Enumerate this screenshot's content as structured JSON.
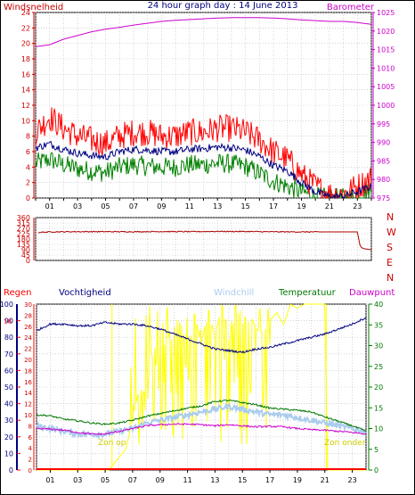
{
  "header": {
    "title": "24 hour graph day : 14 June 2013",
    "left_label": "Windsnelheid",
    "right_label": "Barometer"
  },
  "bottom_header": {
    "regen": "Regen",
    "vochtigheid": "Vochtigheid",
    "windchill": "Windchill",
    "temperatuur": "Temperatuur",
    "dauwpunt": "Dauwpunt"
  },
  "annotations": {
    "zon_op": "Zon op",
    "zon_onder": "Zon onder"
  },
  "compass": [
    "N",
    "W",
    "S",
    "E",
    "N"
  ],
  "colors": {
    "frame": "#000000",
    "grid": "#bbbbbb",
    "wind_axis": "#cc0000",
    "baro_axis": "#cc00cc",
    "gust": "#ff0000",
    "avg_wind": "#000080",
    "wind_min": "#008000",
    "barometer": "#cc00cc",
    "direction": "#aa0000",
    "humidity": "#000080",
    "windchill": "#aaccee",
    "temperature": "#007700",
    "dewpoint": "#cc00cc",
    "solar": "#ffff00",
    "rain": "#ff0000",
    "title": "#000080"
  },
  "chart_data": [
    {
      "type": "line",
      "title": "24 hour graph day : 14 June 2013",
      "ylabel_left": "Windsnelheid",
      "ylabel_right": "Barometer",
      "x_ticks": [
        "01",
        "03",
        "05",
        "07",
        "09",
        "11",
        "13",
        "15",
        "17",
        "19",
        "21",
        "23"
      ],
      "x_range": [
        0,
        24
      ],
      "ylim_left": [
        0,
        24
      ],
      "y_ticks_left": [
        0,
        2,
        4,
        6,
        8,
        10,
        12,
        14,
        16,
        18,
        20,
        22,
        24
      ],
      "ylim_right": [
        975,
        1025
      ],
      "y_ticks_right": [
        975,
        980,
        985,
        990,
        995,
        1000,
        1005,
        1010,
        1015,
        1020,
        1025
      ],
      "grid": true,
      "series": [
        {
          "name": "Barometer",
          "axis": "right",
          "x": [
            0,
            1,
            2,
            3,
            4,
            5,
            6,
            7,
            8,
            9,
            10,
            11,
            12,
            13,
            14,
            15,
            16,
            17,
            18,
            19,
            20,
            21,
            22,
            23,
            24
          ],
          "values": [
            1015.8,
            1016.3,
            1017.8,
            1018.8,
            1019.8,
            1020.5,
            1021.0,
            1021.6,
            1022.1,
            1022.6,
            1022.9,
            1023.1,
            1023.3,
            1023.5,
            1023.6,
            1023.6,
            1023.6,
            1023.5,
            1023.3,
            1023.0,
            1022.8,
            1022.6,
            1022.6,
            1022.3,
            1021.8
          ]
        },
        {
          "name": "Windstoot",
          "axis": "left",
          "x": [
            0,
            1,
            2,
            3,
            4,
            5,
            6,
            7,
            8,
            9,
            10,
            11,
            12,
            13,
            14,
            15,
            16,
            17,
            18,
            19,
            20,
            21,
            22,
            23,
            24
          ],
          "values": [
            8.5,
            10.5,
            9.0,
            8.0,
            7.5,
            7.0,
            8.0,
            8.5,
            8.5,
            8.0,
            8.0,
            8.5,
            8.5,
            9.0,
            9.0,
            8.5,
            7.5,
            6.0,
            5.0,
            3.0,
            1.5,
            0.5,
            0.5,
            1.5,
            2.5
          ]
        },
        {
          "name": "Gemiddelde wind",
          "axis": "left",
          "x": [
            0,
            1,
            2,
            3,
            4,
            5,
            6,
            7,
            8,
            9,
            10,
            11,
            12,
            13,
            14,
            15,
            16,
            17,
            18,
            19,
            20,
            21,
            22,
            23,
            24
          ],
          "values": [
            6.5,
            7.0,
            6.3,
            5.8,
            5.5,
            5.3,
            6.0,
            6.3,
            6.2,
            6.0,
            6.0,
            6.3,
            6.4,
            6.6,
            6.5,
            6.2,
            5.4,
            4.2,
            3.5,
            2.0,
            0.8,
            0.2,
            0.2,
            0.8,
            1.5
          ]
        },
        {
          "name": "Minimum wind",
          "axis": "left",
          "x": [
            0,
            1,
            2,
            3,
            4,
            5,
            6,
            7,
            8,
            9,
            10,
            11,
            12,
            13,
            14,
            15,
            16,
            17,
            18,
            19,
            20,
            21,
            22,
            23,
            24
          ],
          "values": [
            4.5,
            5.0,
            4.3,
            3.8,
            3.5,
            3.3,
            4.0,
            4.3,
            4.1,
            4.0,
            4.0,
            4.3,
            4.3,
            4.5,
            4.4,
            4.1,
            3.2,
            2.2,
            1.5,
            0.8,
            0.2,
            0.0,
            0.0,
            0.3,
            0.8
          ]
        }
      ]
    },
    {
      "type": "line",
      "ylabel": "",
      "x_range": [
        0,
        24
      ],
      "ylim": [
        0,
        360
      ],
      "y_ticks": [
        0,
        45,
        90,
        135,
        180,
        225,
        270,
        315,
        360
      ],
      "grid": true,
      "series": [
        {
          "name": "Windrichting",
          "x": [
            0.2,
            1,
            3,
            5,
            7,
            9,
            11,
            13,
            15,
            17,
            19,
            20.5,
            21,
            22,
            23,
            23.2,
            23.4,
            24
          ],
          "values": [
            235,
            240,
            242,
            242,
            241,
            243,
            242,
            244,
            243,
            241,
            240,
            240,
            240,
            240,
            240,
            120,
            100,
            90
          ]
        }
      ]
    },
    {
      "type": "line",
      "x_range": [
        0,
        24
      ],
      "axes": {
        "regen": {
          "ylim": [
            0,
            20
          ],
          "ticks": [
            0,
            2,
            4,
            6,
            8,
            10,
            12,
            14,
            16,
            18
          ]
        },
        "vochtigheid": {
          "ylim": [
            0,
            100
          ],
          "ticks": [
            0,
            10,
            20,
            30,
            40,
            50,
            60,
            70,
            80,
            90,
            100
          ]
        },
        "temperatuur": {
          "ylim": [
            0,
            30
          ],
          "ticks": [
            0,
            2,
            4,
            6,
            8,
            10,
            12,
            14,
            16,
            18,
            20,
            22,
            24,
            26,
            28,
            30
          ]
        },
        "zonnestraling": {
          "ylim": [
            0,
            40
          ],
          "ticks": [
            0,
            5,
            10,
            15,
            20,
            25,
            30,
            35,
            40
          ]
        }
      },
      "grid": true,
      "series": [
        {
          "name": "Vochtigheid",
          "axis": "vochtigheid",
          "x": [
            0,
            1,
            2,
            3,
            4,
            5,
            6,
            7,
            8,
            9,
            10,
            11,
            12,
            13,
            14,
            15,
            16,
            17,
            18,
            19,
            20,
            21,
            22,
            23,
            24
          ],
          "values": [
            84,
            88,
            88,
            87,
            87,
            89,
            88,
            88,
            87,
            85,
            82,
            79,
            76,
            73,
            72,
            71,
            73,
            74,
            76,
            78,
            80,
            82,
            85,
            88,
            92
          ]
        },
        {
          "name": "Windchill",
          "axis": "temperatuur",
          "x": [
            0,
            1,
            2,
            3,
            4,
            5,
            6,
            7,
            8,
            9,
            10,
            11,
            12,
            13,
            14,
            15,
            16,
            17,
            18,
            19,
            20,
            21,
            22,
            23,
            24
          ],
          "values": [
            8.0,
            7.5,
            7.0,
            6.5,
            6.5,
            6.5,
            7.0,
            7.5,
            8.5,
            9.0,
            9.5,
            10.0,
            10.5,
            11.0,
            11.5,
            11.0,
            10.5,
            10.0,
            10.0,
            9.5,
            9.0,
            8.5,
            8.0,
            7.5,
            7.0
          ]
        },
        {
          "name": "Temperatuur",
          "axis": "temperatuur",
          "x": [
            0,
            1,
            2,
            3,
            4,
            5,
            6,
            7,
            8,
            9,
            10,
            11,
            12,
            13,
            14,
            15,
            16,
            17,
            18,
            19,
            20,
            21,
            22,
            23,
            24
          ],
          "values": [
            10.0,
            9.8,
            9.2,
            8.9,
            8.5,
            8.3,
            8.5,
            9.0,
            9.7,
            10.2,
            10.7,
            11.2,
            11.6,
            12.4,
            12.6,
            12.2,
            11.8,
            11.2,
            11.0,
            10.8,
            10.5,
            9.6,
            8.8,
            8.0,
            7.0
          ]
        },
        {
          "name": "Dauwpunt",
          "axis": "temperatuur",
          "x": [
            0,
            1,
            2,
            3,
            4,
            5,
            6,
            7,
            8,
            9,
            10,
            11,
            12,
            13,
            14,
            15,
            16,
            17,
            18,
            19,
            20,
            21,
            22,
            23,
            24
          ],
          "values": [
            7.5,
            7.4,
            7.2,
            6.8,
            6.5,
            6.5,
            7.0,
            7.5,
            8.0,
            8.2,
            8.3,
            8.3,
            8.2,
            8.0,
            8.2,
            8.0,
            7.8,
            7.9,
            7.8,
            7.5,
            7.3,
            7.2,
            7.0,
            6.8,
            6.5
          ]
        },
        {
          "name": "Zonnestraling",
          "axis": "zonnestraling",
          "x": [
            0,
            5.3,
            5.5,
            6,
            6.5,
            7,
            7.5,
            8,
            8.5,
            9,
            9.5,
            10,
            10.5,
            11,
            11.5,
            12,
            12.5,
            13,
            13.5,
            14,
            14.5,
            15,
            15.5,
            16,
            16.5,
            17,
            17.5,
            18,
            18.5,
            19,
            19.5,
            20,
            20.5,
            21,
            21.2,
            24
          ],
          "values": [
            0,
            0,
            1,
            3,
            5,
            12,
            20,
            18,
            32,
            22,
            34,
            24,
            36,
            28,
            38,
            30,
            39,
            32,
            40,
            33,
            40,
            35,
            38,
            34,
            33,
            36,
            38,
            35,
            40,
            39,
            40,
            40,
            40,
            40,
            0,
            0
          ]
        },
        {
          "name": "Regen",
          "axis": "regen",
          "x": [
            0,
            24
          ],
          "values": [
            0,
            0
          ]
        }
      ]
    }
  ]
}
